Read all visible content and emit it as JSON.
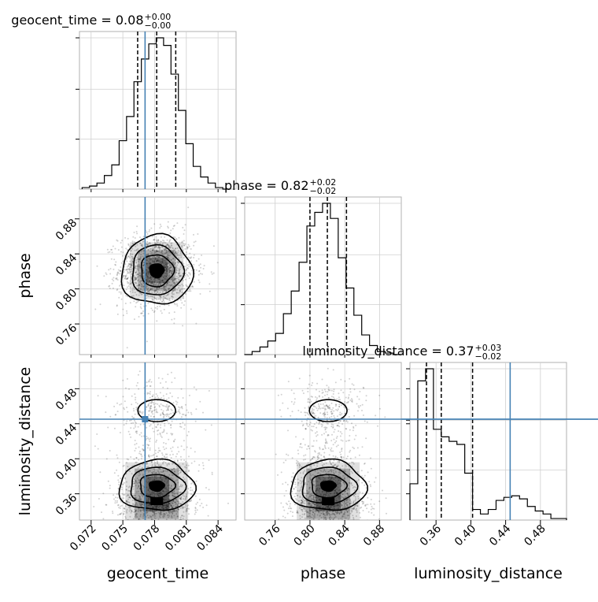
{
  "chart_data": {
    "type": "corner",
    "parameters": [
      "geocent_time",
      "phase",
      "luminosity_distance"
    ],
    "axis_labels": [
      "geocent_time",
      "phase",
      "luminosity_distance"
    ],
    "ranges": [
      [
        0.0709,
        0.0857
      ],
      [
        0.725,
        0.905
      ],
      [
        0.33,
        0.51
      ]
    ],
    "tick_values": [
      [
        0.072,
        0.075,
        0.078,
        0.081,
        0.084
      ],
      [
        0.76,
        0.8,
        0.84,
        0.88
      ],
      [
        0.36,
        0.4,
        0.44,
        0.48
      ]
    ],
    "tick_labels": [
      [
        "0.072",
        "0.075",
        "0.078",
        "0.081",
        "0.084"
      ],
      [
        "0.76",
        "0.80",
        "0.84",
        "0.88"
      ],
      [
        "0.36",
        "0.40",
        "0.44",
        "0.48"
      ]
    ],
    "titles": [
      {
        "param": "geocent_time",
        "value": "0.08",
        "plus": "+0.00",
        "minus": "−0.00"
      },
      {
        "param": "phase",
        "value": "0.82",
        "plus": "+0.02",
        "minus": "−0.02"
      },
      {
        "param": "luminosity_distance",
        "value": "0.37",
        "plus": "+0.03",
        "minus": "−0.02"
      }
    ],
    "truths": [
      0.0771,
      0.0,
      0.4452
    ],
    "truths_shown": [
      true,
      false,
      true
    ],
    "quantiles": [
      [
        0.0764,
        0.0782,
        0.08
      ],
      [
        0.8,
        0.82,
        0.842
      ],
      [
        0.349,
        0.366,
        0.402
      ]
    ],
    "histograms": [
      {
        "bin_centers": [
          0.0715,
          0.0722,
          0.0729,
          0.0736,
          0.0743,
          0.075,
          0.0757,
          0.0764,
          0.0771,
          0.0778,
          0.0785,
          0.0792,
          0.0799,
          0.0806,
          0.0813,
          0.082,
          0.0827,
          0.0834,
          0.0841,
          0.0848
        ],
        "heights": [
          0.01,
          0.02,
          0.04,
          0.09,
          0.16,
          0.32,
          0.48,
          0.71,
          0.86,
          0.96,
          1.0,
          0.95,
          0.76,
          0.52,
          0.3,
          0.15,
          0.08,
          0.04,
          0.01,
          0.0
        ]
      },
      {
        "bin_centers": [
          0.729,
          0.738,
          0.747,
          0.756,
          0.765,
          0.774,
          0.783,
          0.792,
          0.801,
          0.81,
          0.819,
          0.828,
          0.837,
          0.846,
          0.855,
          0.864,
          0.873,
          0.882,
          0.891,
          0.9
        ],
        "heights": [
          0.0,
          0.02,
          0.05,
          0.09,
          0.14,
          0.27,
          0.42,
          0.61,
          0.85,
          0.94,
          1.0,
          0.9,
          0.64,
          0.44,
          0.26,
          0.13,
          0.06,
          0.02,
          0.01,
          0.0
        ]
      },
      {
        "bin_centers": [
          0.3345,
          0.3435,
          0.3525,
          0.3615,
          0.3705,
          0.3795,
          0.3885,
          0.3975,
          0.4065,
          0.4155,
          0.4245,
          0.4335,
          0.4425,
          0.4515,
          0.4605,
          0.4695,
          0.4785,
          0.4875,
          0.4965,
          0.5055
        ],
        "heights": [
          0.24,
          0.92,
          1.0,
          0.6,
          0.55,
          0.52,
          0.5,
          0.31,
          0.07,
          0.04,
          0.07,
          0.13,
          0.15,
          0.16,
          0.14,
          0.09,
          0.06,
          0.04,
          0.01,
          0.01
        ]
      }
    ]
  }
}
